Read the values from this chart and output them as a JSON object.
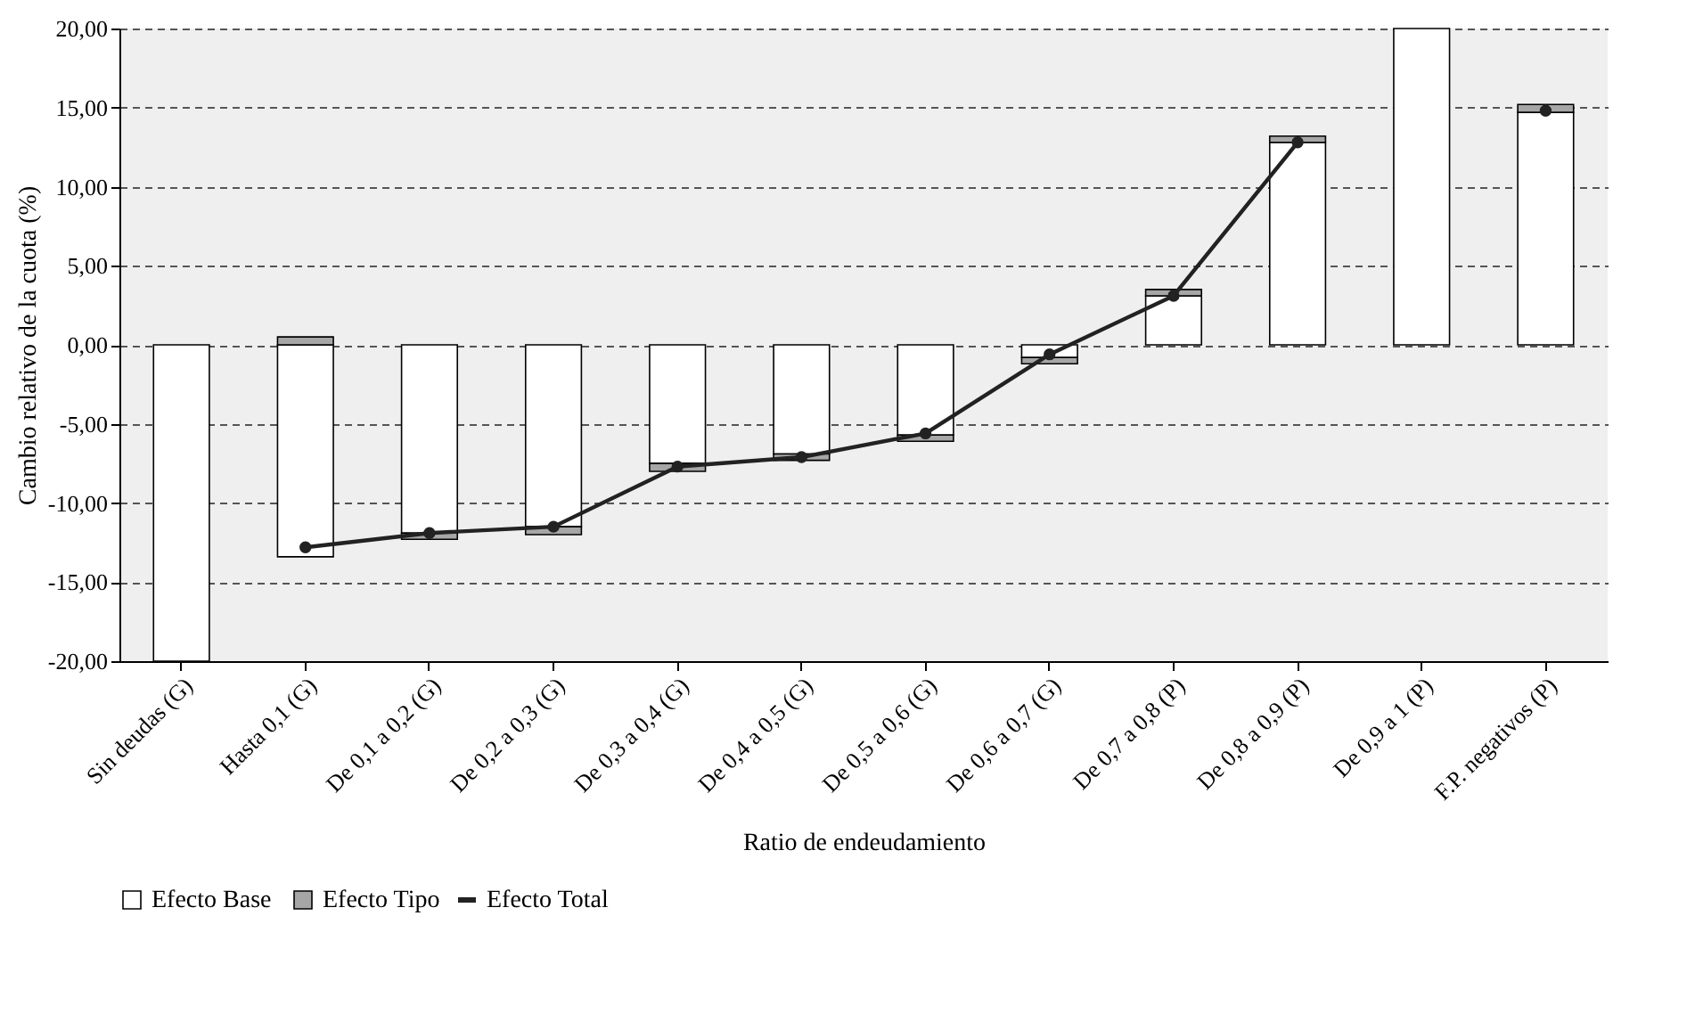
{
  "chart_data": {
    "type": "bar",
    "stacked": true,
    "xlabel": "Ratio de endeudamiento",
    "ylabel": "Cambio relativo de la cuota (%)",
    "categories": [
      "Sin deudas (G)",
      "Hasta 0,1 (G)",
      "De 0,1 a 0,2 (G)",
      "De 0,2 a 0,3 (G)",
      "De 0,3 a 0,4 (G)",
      "De 0,4 a 0,5 (G)",
      "De 0,5 a 0,6 (G)",
      "De 0,6 a 0,7 (G)",
      "De 0,7 a 0,8 (P)",
      "De 0,8 a 0,9 (P)",
      "De 0,9 a 1 (P)",
      "F.P. negativos (P)"
    ],
    "series": [
      {
        "name": "Efecto Base",
        "color": "#ffffff",
        "values": [
          -20,
          -13.4,
          -11.9,
          -11.5,
          -7.5,
          -6.9,
          -5.7,
          -0.8,
          3.1,
          12.8,
          20,
          14.7
        ]
      },
      {
        "name": "Efecto Tipo",
        "color": "#a6a6a6",
        "values": [
          null,
          0.5,
          -0.4,
          -0.5,
          -0.5,
          -0.4,
          -0.4,
          -0.4,
          0.4,
          0.4,
          null,
          0.5
        ]
      },
      {
        "name": "Efecto Total",
        "type": "line",
        "color": "#222222",
        "values": [
          null,
          -12.8,
          -11.9,
          -11.5,
          -7.7,
          -7.1,
          -5.6,
          -0.6,
          3.1,
          12.8,
          null,
          14.8
        ]
      }
    ],
    "ylim": [
      -20,
      20
    ],
    "yticks": [
      {
        "value": -20,
        "label": "-20,00"
      },
      {
        "value": -15,
        "label": "-15,00"
      },
      {
        "value": -10,
        "label": "-10,00"
      },
      {
        "value": -5,
        "label": "-5,00"
      },
      {
        "value": 0,
        "label": "0,00"
      },
      {
        "value": 5,
        "label": "5,00"
      },
      {
        "value": 10,
        "label": "10,00"
      },
      {
        "value": 15,
        "label": "15,00"
      },
      {
        "value": 20,
        "label": "20,00"
      }
    ],
    "grid": "y",
    "legend": "bottom",
    "marker": "circle",
    "line_style": "solid"
  }
}
